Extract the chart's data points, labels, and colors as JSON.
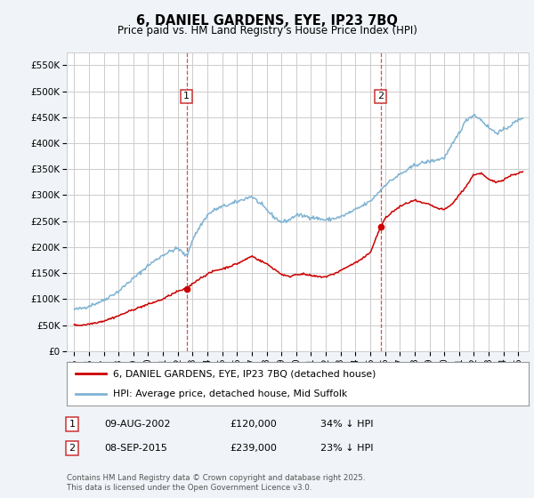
{
  "title": "6, DANIEL GARDENS, EYE, IP23 7BQ",
  "subtitle": "Price paid vs. HM Land Registry's House Price Index (HPI)",
  "ylabel_ticks": [
    "£0",
    "£50K",
    "£100K",
    "£150K",
    "£200K",
    "£250K",
    "£300K",
    "£350K",
    "£400K",
    "£450K",
    "£500K",
    "£550K"
  ],
  "ytick_values": [
    0,
    50000,
    100000,
    150000,
    200000,
    250000,
    300000,
    350000,
    400000,
    450000,
    500000,
    550000
  ],
  "ylim": [
    0,
    575000
  ],
  "xlim_start": 1994.5,
  "xlim_end": 2025.7,
  "xtick_years": [
    1995,
    1996,
    1997,
    1998,
    1999,
    2000,
    2001,
    2002,
    2003,
    2004,
    2005,
    2006,
    2007,
    2008,
    2009,
    2010,
    2011,
    2012,
    2013,
    2014,
    2015,
    2016,
    2017,
    2018,
    2019,
    2020,
    2021,
    2022,
    2023,
    2024,
    2025
  ],
  "hpi_color": "#7fb3d3",
  "price_color": "#cc0000",
  "vline_color": "#cc3333",
  "sale1_year": 2002.6,
  "sale1_price": 120000,
  "sale1_label": "1",
  "sale2_year": 2015.7,
  "sale2_price": 239000,
  "sale2_label": "2",
  "legend_label_price": "6, DANIEL GARDENS, EYE, IP23 7BQ (detached house)",
  "legend_label_hpi": "HPI: Average price, detached house, Mid Suffolk",
  "footnote": "Contains HM Land Registry data © Crown copyright and database right 2025.\nThis data is licensed under the Open Government Licence v3.0.",
  "table_rows": [
    {
      "num": "1",
      "date": "09-AUG-2002",
      "price": "£120,000",
      "note": "34% ↓ HPI"
    },
    {
      "num": "2",
      "date": "08-SEP-2015",
      "price": "£239,000",
      "note": "23% ↓ HPI"
    }
  ],
  "background_color": "#f0f4f8",
  "plot_bg_color": "#ffffff",
  "grid_color": "#cccccc",
  "hpi_keypoints_x": [
    1995.0,
    1995.5,
    1996.0,
    1996.5,
    1997.0,
    1997.5,
    1998.0,
    1998.5,
    1999.0,
    1999.5,
    2000.0,
    2000.5,
    2001.0,
    2001.5,
    2002.0,
    2002.6,
    2003.0,
    2003.5,
    2004.0,
    2004.5,
    2005.0,
    2005.5,
    2006.0,
    2006.5,
    2007.0,
    2007.5,
    2008.0,
    2008.5,
    2009.0,
    2009.5,
    2010.0,
    2010.5,
    2011.0,
    2011.5,
    2012.0,
    2012.5,
    2013.0,
    2013.5,
    2014.0,
    2014.5,
    2015.0,
    2015.7,
    2016.0,
    2016.5,
    2017.0,
    2017.5,
    2018.0,
    2018.5,
    2019.0,
    2019.5,
    2020.0,
    2020.5,
    2021.0,
    2021.5,
    2022.0,
    2022.5,
    2023.0,
    2023.5,
    2024.0,
    2024.5,
    2025.3
  ],
  "hpi_keypoints_y": [
    80000,
    82000,
    87000,
    92000,
    98000,
    107000,
    115000,
    128000,
    140000,
    152000,
    165000,
    175000,
    185000,
    192000,
    198000,
    182000,
    215000,
    240000,
    262000,
    272000,
    278000,
    282000,
    287000,
    293000,
    298000,
    285000,
    272000,
    258000,
    248000,
    252000,
    262000,
    260000,
    258000,
    255000,
    252000,
    255000,
    258000,
    265000,
    272000,
    280000,
    288000,
    310000,
    320000,
    330000,
    340000,
    348000,
    358000,
    362000,
    365000,
    368000,
    372000,
    395000,
    420000,
    445000,
    455000,
    445000,
    430000,
    420000,
    425000,
    435000,
    450000
  ],
  "price_keypoints_x": [
    1995.0,
    1995.5,
    1996.0,
    1996.5,
    1997.0,
    1997.5,
    1998.0,
    1998.5,
    1999.0,
    1999.5,
    2000.0,
    2000.5,
    2001.0,
    2001.5,
    2002.0,
    2002.6,
    2003.0,
    2003.5,
    2004.0,
    2004.5,
    2005.0,
    2005.5,
    2006.0,
    2006.5,
    2007.0,
    2007.5,
    2008.0,
    2008.5,
    2009.0,
    2009.5,
    2010.0,
    2010.5,
    2011.0,
    2011.5,
    2012.0,
    2012.5,
    2013.0,
    2013.5,
    2014.0,
    2014.5,
    2015.0,
    2015.7,
    2016.0,
    2016.5,
    2017.0,
    2017.5,
    2018.0,
    2018.5,
    2019.0,
    2019.5,
    2020.0,
    2020.5,
    2021.0,
    2021.5,
    2022.0,
    2022.5,
    2023.0,
    2023.5,
    2024.0,
    2024.5,
    2025.3
  ],
  "price_keypoints_y": [
    50000,
    50000,
    52000,
    55000,
    58000,
    63000,
    68000,
    74000,
    80000,
    85000,
    90000,
    95000,
    100000,
    108000,
    115000,
    120000,
    130000,
    140000,
    148000,
    155000,
    158000,
    163000,
    168000,
    175000,
    183000,
    175000,
    168000,
    158000,
    148000,
    143000,
    148000,
    148000,
    145000,
    143000,
    143000,
    148000,
    155000,
    163000,
    170000,
    178000,
    190000,
    239000,
    255000,
    268000,
    278000,
    285000,
    290000,
    285000,
    282000,
    275000,
    272000,
    282000,
    300000,
    318000,
    340000,
    342000,
    330000,
    325000,
    330000,
    338000,
    345000
  ]
}
